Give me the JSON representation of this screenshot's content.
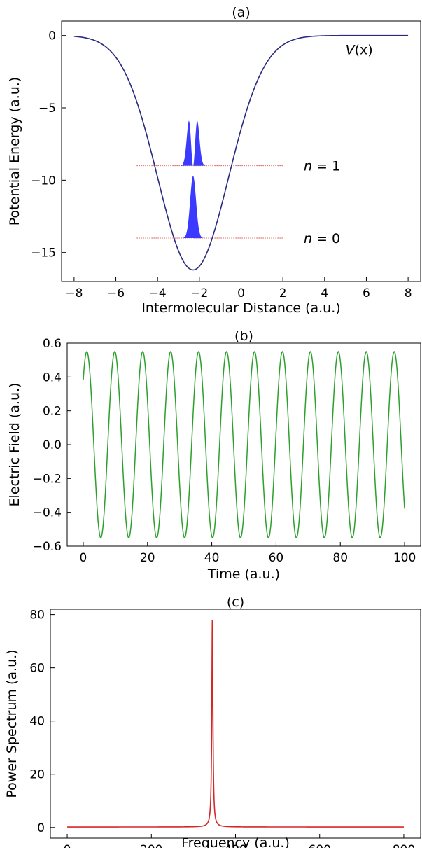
{
  "chart_data": [
    {
      "type": "line",
      "title": "(a)",
      "xlabel": "Intermolecular Distance (a.u.)",
      "ylabel": "Potential Energy (a.u.)",
      "xlim": [
        -8.6,
        8.6
      ],
      "ylim": [
        -17,
        1
      ],
      "xticks": [
        -8,
        -6,
        -4,
        -2,
        0,
        2,
        4,
        6,
        8
      ],
      "xtick_labels": [
        "−8",
        "−6",
        "−4",
        "−2",
        "0",
        "2",
        "4",
        "6",
        "8"
      ],
      "yticks": [
        0,
        -5,
        -10,
        -15
      ],
      "ytick_labels": [
        "0",
        "−5",
        "−10",
        "−15"
      ],
      "grid": false,
      "potential": {
        "label_math": "V",
        "label_arg": "(x)",
        "color": "#2a2a80",
        "x_range": [
          -8,
          8
        ],
        "min_x": -2.3,
        "min_y": -16.2,
        "width": 2.4
      },
      "levels": [
        {
          "label_math": "n",
          "label_rest": " = 1",
          "energy": -9.0,
          "x_range": [
            -5,
            2
          ],
          "quantum_number": 1,
          "center": -2.3,
          "sigma": 0.2,
          "peak_height": 3.1
        },
        {
          "label_math": "n",
          "label_rest": " = 0",
          "energy": -14.0,
          "x_range": [
            -5,
            2
          ],
          "quantum_number": 0,
          "center": -2.3,
          "sigma": 0.2,
          "peak_height": 4.3
        }
      ],
      "level_line_color": "#d9534f",
      "wavefunction_color": "#3b3bff"
    },
    {
      "type": "line",
      "title": "(b)",
      "xlabel": "Time (a.u.)",
      "ylabel": "Electric Field (a.u.)",
      "xlim": [
        -5,
        105
      ],
      "ylim": [
        -0.6,
        0.6
      ],
      "xticks": [
        0,
        20,
        40,
        60,
        80,
        100
      ],
      "xtick_labels": [
        "0",
        "20",
        "40",
        "60",
        "80",
        "100"
      ],
      "yticks": [
        0.6,
        0.4,
        0.2,
        0.0,
        -0.2,
        -0.4,
        -0.6
      ],
      "ytick_labels": [
        "0.6",
        "0.4",
        "0.2",
        "0.0",
        "−0.2",
        "−0.4",
        "−0.6"
      ],
      "grid": false,
      "series": [
        {
          "color": "#2ca02c",
          "function": "A*sin(w*t+phi)",
          "amplitude": 0.55,
          "angular_frequency": 0.7225,
          "phase": 0.765,
          "x_range": [
            0,
            100
          ]
        }
      ]
    },
    {
      "type": "line",
      "title": "(c)",
      "xlabel": "Frequency (a.u.)",
      "ylabel": "Power Spectrum (a.u.)",
      "xlim": [
        -40,
        840
      ],
      "ylim": [
        -4,
        82
      ],
      "xticks": [
        0,
        200,
        400,
        600,
        800
      ],
      "xtick_labels": [
        "0",
        "200",
        "400",
        "600",
        "800"
      ],
      "yticks": [
        80,
        60,
        40,
        20,
        0
      ],
      "ytick_labels": [
        "80",
        "60",
        "40",
        "20",
        "0"
      ],
      "grid": false,
      "series": [
        {
          "color": "#d62728",
          "peak_frequency": 345,
          "peak_value": 78,
          "half_width": 1.6,
          "baseline": 0.2,
          "x_range": [
            0,
            800
          ]
        }
      ]
    }
  ]
}
